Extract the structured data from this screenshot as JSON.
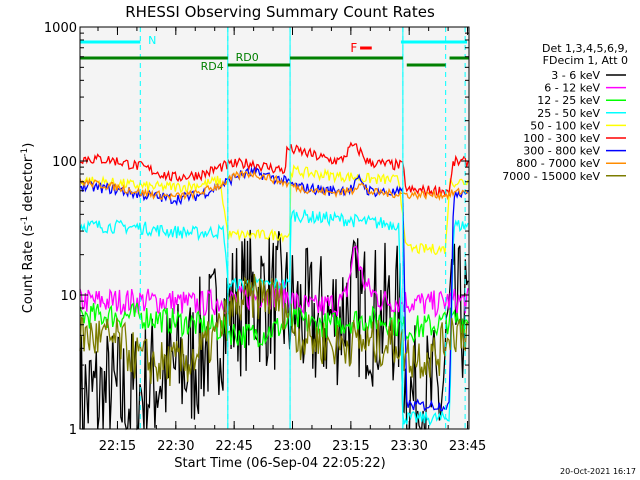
{
  "chart_data": {
    "type": "line",
    "title": "RHESSI Observing Summary Count Rates",
    "xlabel": "Start Time (06-Sep-04 22:05:22)",
    "ylabel_main": "Count Rate (s",
    "ylabel_sup1": "-1",
    "ylabel_mid": " detector",
    "ylabel_sup2": "-1",
    "ylabel_end": ")",
    "y_scale": "log",
    "ylim": [
      1,
      1000
    ],
    "xlim_minutes": [
      0,
      100
    ],
    "y_ticks": [
      {
        "value": 1,
        "label": "1"
      },
      {
        "value": 10,
        "label": "10"
      },
      {
        "value": 100,
        "label": "100"
      },
      {
        "value": 1000,
        "label": "1000"
      }
    ],
    "x_ticks": [
      {
        "min": 9.63,
        "label": "22:15"
      },
      {
        "min": 24.63,
        "label": "22:30"
      },
      {
        "min": 39.63,
        "label": "22:45"
      },
      {
        "min": 54.63,
        "label": "23:00"
      },
      {
        "min": 69.63,
        "label": "23:15"
      },
      {
        "min": 84.63,
        "label": "23:30"
      },
      {
        "min": 99.63,
        "label": "23:45"
      }
    ],
    "legend_placement": "right",
    "legend_header": [
      "Det 1,3,4,5,6,9,",
      "FDecim 1, Att 0"
    ],
    "series": [
      {
        "name": "3 - 6 keV",
        "color": "#000000",
        "points": [
          [
            0,
            1.7
          ],
          [
            14,
            1.7
          ],
          [
            15,
            1.8
          ],
          [
            20,
            2.5
          ],
          [
            28,
            3
          ],
          [
            37,
            7
          ],
          [
            42,
            9
          ],
          [
            47,
            10
          ],
          [
            53,
            8
          ],
          [
            56,
            7
          ],
          [
            60,
            6
          ],
          [
            66,
            7
          ],
          [
            70,
            9
          ],
          [
            72,
            8
          ],
          [
            76,
            7
          ],
          [
            79,
            7
          ],
          [
            82,
            7
          ],
          [
            84,
            1.7
          ],
          [
            93,
            1.7
          ],
          [
            95,
            7
          ],
          [
            100,
            7
          ]
        ]
      },
      {
        "name": "6 - 12 keV",
        "color": "#ff00ff",
        "points": [
          [
            0,
            9
          ],
          [
            15,
            9
          ],
          [
            22,
            9
          ],
          [
            30,
            8.5
          ],
          [
            37,
            9
          ],
          [
            42,
            9.5
          ],
          [
            47,
            10
          ],
          [
            53,
            10
          ],
          [
            56,
            8.5
          ],
          [
            60,
            8
          ],
          [
            65,
            8.5
          ],
          [
            68,
            9
          ],
          [
            71,
            25
          ],
          [
            72,
            15
          ],
          [
            74,
            11
          ],
          [
            78,
            9
          ],
          [
            84,
            9
          ],
          [
            90,
            8.5
          ],
          [
            95,
            9
          ],
          [
            100,
            9
          ]
        ]
      },
      {
        "name": "12 - 25 keV",
        "color": "#00ff00",
        "points": [
          [
            0,
            7
          ],
          [
            15,
            7
          ],
          [
            22,
            6.5
          ],
          [
            30,
            6
          ],
          [
            37,
            5.5
          ],
          [
            42,
            5
          ],
          [
            47,
            5.2
          ],
          [
            53,
            6
          ],
          [
            56,
            6.5
          ],
          [
            60,
            6
          ],
          [
            65,
            6
          ],
          [
            70,
            6.5
          ],
          [
            74,
            6.5
          ],
          [
            79,
            6.5
          ],
          [
            84,
            5.5
          ],
          [
            92,
            6
          ],
          [
            95,
            6.5
          ],
          [
            100,
            6.5
          ]
        ]
      },
      {
        "name": "25 - 50 keV",
        "color": "#00ffff",
        "points": [
          [
            0,
            33
          ],
          [
            15,
            32
          ],
          [
            22,
            30
          ],
          [
            30,
            29
          ],
          [
            37,
            30
          ],
          [
            38,
            12
          ],
          [
            47,
            12
          ],
          [
            54,
            12
          ],
          [
            54,
            40
          ],
          [
            60,
            38
          ],
          [
            66,
            37
          ],
          [
            70,
            36
          ],
          [
            74,
            35
          ],
          [
            79,
            34
          ],
          [
            82,
            34
          ],
          [
            83,
            1.2
          ],
          [
            95,
            1.2
          ],
          [
            96,
            33
          ],
          [
            100,
            33
          ]
        ]
      },
      {
        "name": "50 - 100 keV",
        "color": "#ffff00",
        "points": [
          [
            0,
            72
          ],
          [
            10,
            68
          ],
          [
            18,
            64
          ],
          [
            26,
            64
          ],
          [
            32,
            67
          ],
          [
            36,
            72
          ],
          [
            38,
            28
          ],
          [
            46,
            28
          ],
          [
            54,
            28
          ],
          [
            54,
            85
          ],
          [
            58,
            82
          ],
          [
            64,
            78
          ],
          [
            70,
            76
          ],
          [
            76,
            73
          ],
          [
            82,
            72
          ],
          [
            84,
            22
          ],
          [
            94,
            22
          ],
          [
            95,
            70
          ],
          [
            100,
            70
          ]
        ]
      },
      {
        "name": "100 - 300 keV",
        "color": "#ff0000",
        "points": [
          [
            0,
            105
          ],
          [
            8,
            102
          ],
          [
            16,
            90
          ],
          [
            24,
            75
          ],
          [
            32,
            80
          ],
          [
            36,
            90
          ],
          [
            40,
            95
          ],
          [
            44,
            96
          ],
          [
            48,
            90
          ],
          [
            53,
            85
          ],
          [
            53,
            125
          ],
          [
            58,
            115
          ],
          [
            64,
            102
          ],
          [
            67,
            100
          ],
          [
            70,
            130
          ],
          [
            72,
            118
          ],
          [
            74,
            98
          ],
          [
            78,
            95
          ],
          [
            83,
            92
          ],
          [
            84,
            60
          ],
          [
            95,
            60
          ],
          [
            96,
            98
          ],
          [
            100,
            98
          ]
        ]
      },
      {
        "name": "300 - 800 keV",
        "color": "#0000ff",
        "points": [
          [
            0,
            65
          ],
          [
            8,
            62
          ],
          [
            16,
            56
          ],
          [
            24,
            52
          ],
          [
            30,
            55
          ],
          [
            36,
            65
          ],
          [
            40,
            77
          ],
          [
            44,
            82
          ],
          [
            48,
            78
          ],
          [
            53,
            70
          ],
          [
            56,
            64
          ],
          [
            64,
            60
          ],
          [
            70,
            62
          ],
          [
            72,
            75
          ],
          [
            74,
            60
          ],
          [
            80,
            58
          ],
          [
            83,
            58
          ],
          [
            84,
            1.5
          ],
          [
            95,
            1.5
          ],
          [
            96,
            58
          ],
          [
            100,
            60
          ]
        ]
      },
      {
        "name": "800 - 7000 keV",
        "color": "#ff8c00",
        "points": [
          [
            0,
            70
          ],
          [
            8,
            65
          ],
          [
            16,
            58
          ],
          [
            24,
            54
          ],
          [
            30,
            57
          ],
          [
            36,
            66
          ],
          [
            40,
            77
          ],
          [
            44,
            81
          ],
          [
            48,
            76
          ],
          [
            53,
            68
          ],
          [
            56,
            63
          ],
          [
            64,
            58
          ],
          [
            70,
            60
          ],
          [
            72,
            70
          ],
          [
            74,
            59
          ],
          [
            80,
            57
          ],
          [
            83,
            57
          ],
          [
            84,
            56
          ],
          [
            95,
            56
          ],
          [
            96,
            58
          ],
          [
            100,
            60
          ]
        ]
      },
      {
        "name": "7000 - 15000 keV",
        "color": "#7c7c00",
        "points": [
          [
            0,
            5
          ],
          [
            10,
            4.5
          ],
          [
            14,
            3.5
          ],
          [
            20,
            3
          ],
          [
            28,
            3.2
          ],
          [
            34,
            4.5
          ],
          [
            38,
            7
          ],
          [
            42,
            9
          ],
          [
            47,
            10
          ],
          [
            50,
            9.5
          ],
          [
            53,
            8
          ],
          [
            56,
            5
          ],
          [
            62,
            4.5
          ],
          [
            66,
            4.2
          ],
          [
            70,
            4.5
          ],
          [
            76,
            4.3
          ],
          [
            82,
            4.5
          ],
          [
            84,
            3.5
          ],
          [
            92,
            3.5
          ],
          [
            95,
            5.5
          ],
          [
            100,
            5.5
          ]
        ]
      }
    ],
    "annotations": {
      "night_label": "N",
      "flare_label": "F",
      "rd0_label": "RD0",
      "rd4_label": "RD4"
    }
  },
  "footer": {
    "timestamp": "20-Oct-2021 16:17"
  },
  "colors": {
    "cyan_markers": "#00ffff",
    "green_bars": "#008000",
    "flare_red": "#ff0000",
    "axis": "#000000"
  }
}
